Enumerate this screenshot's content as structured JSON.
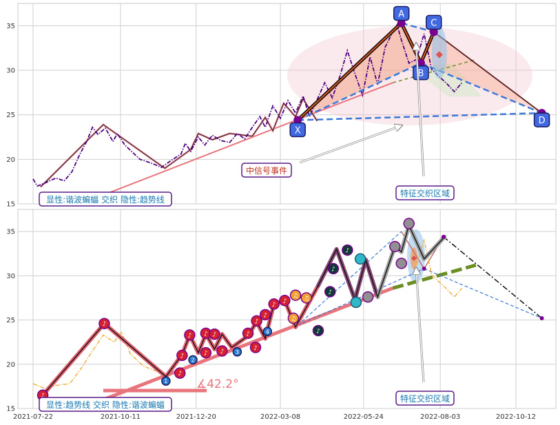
{
  "chart_data": [
    {
      "type": "line",
      "panel": "top",
      "ylim": [
        15,
        37.5
      ],
      "yticks": [
        15,
        20,
        25,
        30,
        35
      ],
      "price": [
        [
          "2021-07-22",
          17.8
        ],
        [
          "2021-07-26",
          17.0
        ],
        [
          "2021-08-03",
          17.4
        ],
        [
          "2021-08-12",
          17.9
        ],
        [
          "2021-08-20",
          17.6
        ],
        [
          "2021-08-27",
          18.6
        ],
        [
          "2021-09-03",
          20.5
        ],
        [
          "2021-09-10",
          22.1
        ],
        [
          "2021-09-15",
          23.6
        ],
        [
          "2021-09-20",
          22.8
        ],
        [
          "2021-09-27",
          23.5
        ],
        [
          "2021-10-04",
          22.0
        ],
        [
          "2021-10-08",
          22.9
        ],
        [
          "2021-10-15",
          21.6
        ],
        [
          "2021-10-22",
          20.8
        ],
        [
          "2021-10-29",
          20.0
        ],
        [
          "2021-11-08",
          19.6
        ],
        [
          "2021-11-18",
          19.1
        ],
        [
          "2021-11-26",
          19.8
        ],
        [
          "2021-12-06",
          20.6
        ],
        [
          "2021-12-10",
          21.8
        ],
        [
          "2021-12-15",
          20.9
        ],
        [
          "2021-12-22",
          22.5
        ],
        [
          "2021-12-28",
          21.6
        ],
        [
          "2022-01-04",
          22.7
        ],
        [
          "2022-01-12",
          22.1
        ],
        [
          "2022-01-20",
          21.9
        ],
        [
          "2022-01-27",
          22.9
        ],
        [
          "2022-02-03",
          22.3
        ],
        [
          "2022-02-10",
          23.6
        ],
        [
          "2022-02-17",
          24.8
        ],
        [
          "2022-02-22",
          23.6
        ],
        [
          "2022-03-01",
          26.0
        ],
        [
          "2022-03-08",
          24.6
        ],
        [
          "2022-03-15",
          26.6
        ],
        [
          "2022-03-22",
          25.2
        ],
        [
          "2022-03-29",
          27.1
        ],
        [
          "2022-04-04",
          24.8
        ],
        [
          "2022-04-11",
          26.7
        ],
        [
          "2022-04-18",
          28.6
        ],
        [
          "2022-04-25",
          26.9
        ],
        [
          "2022-05-02",
          29.3
        ],
        [
          "2022-05-09",
          32.2
        ],
        [
          "2022-05-16",
          29.6
        ],
        [
          "2022-05-23",
          27.2
        ],
        [
          "2022-05-30",
          31.5
        ],
        [
          "2022-06-06",
          28.4
        ],
        [
          "2022-06-13",
          32.6
        ],
        [
          "2022-06-20",
          34.3
        ],
        [
          "2022-06-24",
          35.1
        ],
        [
          "2022-06-28",
          33.4
        ],
        [
          "2022-07-05",
          30.8
        ],
        [
          "2022-07-12",
          31.2
        ],
        [
          "2022-07-19",
          34.1
        ],
        [
          "2022-07-26",
          30.1
        ],
        [
          "2022-08-02",
          29.3
        ],
        [
          "2022-08-09",
          28.5
        ],
        [
          "2022-08-16",
          27.6
        ],
        [
          "2022-08-23",
          28.6
        ]
      ],
      "zigzag": [
        [
          "2021-07-29",
          16.9
        ],
        [
          "2021-09-25",
          23.9
        ],
        [
          "2021-11-21",
          19.0
        ],
        [
          "2021-12-15",
          21.1
        ],
        [
          "2021-12-22",
          22.9
        ],
        [
          "2022-01-04",
          22.2
        ],
        [
          "2022-01-20",
          22.9
        ],
        [
          "2022-02-10",
          22.6
        ],
        [
          "2022-02-22",
          24.7
        ],
        [
          "2022-03-01",
          23.2
        ],
        [
          "2022-03-11",
          26.3
        ],
        [
          "2022-03-22",
          24.8
        ],
        [
          "2022-03-29",
          26.8
        ],
        [
          "2022-04-11",
          24.3
        ]
      ],
      "harmonic_points": [
        {
          "label": "X",
          "date": "2022-03-24",
          "value": 24.4
        },
        {
          "label": "A",
          "date": "2022-06-28",
          "value": 35.3
        },
        {
          "label": "B",
          "date": "2022-07-16",
          "value": 30.8
        },
        {
          "label": "C",
          "date": "2022-07-28",
          "value": 34.3
        },
        {
          "label": "D",
          "date": "2022-11-05",
          "value": 25.2
        }
      ],
      "trendline": [
        [
          "2021-09-25",
          16.0
        ],
        [
          "2022-06-20",
          28.6
        ]
      ],
      "trendline_ext": [
        [
          "2022-06-20",
          28.6
        ],
        [
          "2022-09-05",
          31.2
        ]
      ],
      "callouts": [
        "中信号事件",
        "特征交织区域"
      ],
      "legend_text": "显性:谐波蝙蝠 交织 隐性:趋势线"
    },
    {
      "type": "line",
      "panel": "bottom",
      "ylim": [
        15,
        37.5
      ],
      "yticks": [
        15,
        20,
        25,
        30,
        35
      ],
      "xticks": [
        "2021-07-22",
        "2021-10-11",
        "2021-12-20",
        "2022-03-08",
        "2022-05-24",
        "2022-08-03",
        "2022-10-12"
      ],
      "zigzag": [
        [
          "2021-07-31",
          16.5
        ],
        [
          "2021-09-26",
          24.6
        ],
        [
          "2021-11-22",
          18.6
        ],
        [
          "2021-12-07",
          21.1
        ],
        [
          "2021-12-14",
          23.3
        ],
        [
          "2021-12-22",
          21.3
        ],
        [
          "2021-12-29",
          23.4
        ],
        [
          "2022-01-06",
          21.7
        ],
        [
          "2022-01-13",
          23.4
        ],
        [
          "2022-01-22",
          21.9
        ],
        [
          "2022-02-06",
          23.2
        ],
        [
          "2022-02-14",
          24.8
        ],
        [
          "2022-02-22",
          22.9
        ],
        [
          "2022-03-02",
          26.8
        ],
        [
          "2022-03-12",
          27.2
        ],
        [
          "2022-03-22",
          24.2
        ],
        [
          "2022-04-12",
          28.9
        ],
        [
          "2022-04-29",
          33.0
        ],
        [
          "2022-05-16",
          27.3
        ],
        [
          "2022-05-26",
          31.8
        ],
        [
          "2022-06-06",
          27.6
        ],
        [
          "2022-06-22",
          33.3
        ],
        [
          "2022-06-28",
          32.7
        ],
        [
          "2022-07-05",
          35.7
        ],
        [
          "2022-07-19",
          31.9
        ],
        [
          "2022-08-07",
          34.4
        ]
      ],
      "markers": [
        {
          "date": "2021-07-31",
          "value": 16.5,
          "kind": "red"
        },
        {
          "date": "2021-09-26",
          "value": 24.6,
          "kind": "red"
        },
        {
          "date": "2021-11-22",
          "value": 18.1,
          "kind": "blue",
          "num": "1"
        },
        {
          "date": "2021-12-05",
          "value": 19.0,
          "kind": "red"
        },
        {
          "date": "2021-12-07",
          "value": 21.0,
          "kind": "red"
        },
        {
          "date": "2021-12-14",
          "value": 23.3,
          "kind": "red"
        },
        {
          "date": "2021-12-17",
          "value": 20.5,
          "kind": "blue",
          "num": "2"
        },
        {
          "date": "2021-12-29",
          "value": 23.5,
          "kind": "red"
        },
        {
          "date": "2021-12-29",
          "value": 21.3,
          "kind": "red"
        },
        {
          "date": "2022-01-06",
          "value": 23.4,
          "kind": "red"
        },
        {
          "date": "2022-01-13",
          "value": 21.5,
          "kind": "red"
        },
        {
          "date": "2022-01-27",
          "value": 21.4,
          "kind": "blue",
          "num": "3"
        },
        {
          "date": "2022-02-06",
          "value": 23.5,
          "kind": "red"
        },
        {
          "date": "2022-02-13",
          "value": 21.9,
          "kind": "red"
        },
        {
          "date": "2022-02-14",
          "value": 24.9,
          "kind": "red"
        },
        {
          "date": "2022-02-22",
          "value": 25.6,
          "kind": "red"
        },
        {
          "date": "2022-02-24",
          "value": 23.7,
          "kind": "blue",
          "num": "4"
        },
        {
          "date": "2022-03-02",
          "value": 26.8,
          "kind": "red"
        },
        {
          "date": "2022-03-12",
          "value": 27.2,
          "kind": "red"
        },
        {
          "date": "2022-03-22",
          "value": 27.8,
          "kind": "orange"
        },
        {
          "date": "2022-03-20",
          "value": 25.2,
          "kind": "orange"
        },
        {
          "date": "2022-04-01",
          "value": 27.5,
          "kind": "orange"
        },
        {
          "date": "2022-04-12",
          "value": 23.8,
          "kind": "dark"
        },
        {
          "date": "2022-04-23",
          "value": 28.2,
          "kind": "dark"
        },
        {
          "date": "2022-04-26",
          "value": 30.8,
          "kind": "dark"
        },
        {
          "date": "2022-05-09",
          "value": 32.9,
          "kind": "dark"
        },
        {
          "date": "2022-05-17",
          "value": 27.0,
          "kind": "teal"
        },
        {
          "date": "2022-05-21",
          "value": 31.9,
          "kind": "teal"
        },
        {
          "date": "2022-05-28",
          "value": 27.6,
          "kind": "gray"
        },
        {
          "date": "2022-06-22",
          "value": 33.3,
          "kind": "gray"
        },
        {
          "date": "2022-06-28",
          "value": 31.4,
          "kind": "gray"
        },
        {
          "date": "2022-07-05",
          "value": 35.9,
          "kind": "gray"
        }
      ],
      "price": [
        [
          "2021-07-22",
          17.8
        ],
        [
          "2021-08-03",
          17.2
        ],
        [
          "2021-08-12",
          17.6
        ],
        [
          "2021-08-25",
          17.8
        ],
        [
          "2021-09-05",
          19.6
        ],
        [
          "2021-09-15",
          21.5
        ],
        [
          "2021-09-25",
          23.3
        ],
        [
          "2021-10-05",
          22.5
        ],
        [
          "2021-10-12",
          23.6
        ],
        [
          "2021-10-20",
          21.2
        ],
        [
          "2021-11-01",
          19.8
        ],
        [
          "2021-11-22",
          18.8
        ],
        [
          "2022-07-12",
          31.2
        ],
        [
          "2022-07-19",
          34.1
        ],
        [
          "2022-07-26",
          30.1
        ],
        [
          "2022-08-02",
          29.3
        ],
        [
          "2022-08-09",
          28.5
        ],
        [
          "2022-08-16",
          27.6
        ],
        [
          "2022-08-23",
          28.6
        ]
      ],
      "bat_outline": [
        [
          "2022-06-28",
          35.0
        ],
        [
          "2022-07-19",
          30.8
        ],
        [
          "2022-08-06",
          34.4
        ],
        [
          "2022-11-05",
          25.2
        ]
      ],
      "trendline": [
        [
          "2021-09-25",
          16.0
        ],
        [
          "2022-06-20",
          28.6
        ]
      ],
      "trendline_ext": [
        [
          "2022-06-20",
          28.6
        ],
        [
          "2022-09-05",
          31.2
        ]
      ],
      "angle_text": "∡42.2°",
      "callouts": [
        "特征交织区域"
      ],
      "legend_text": "显性:趋势线 交织 隐性:谐波蝙蝠"
    }
  ],
  "colors": {
    "grid": "#cfcfcf",
    "price_dash": "#4b0082",
    "trend": "#e8747c",
    "trend_ext": "#6b8e23",
    "bat_dash": "#3c78d8",
    "label_fill": "#4169e1",
    "accent_purple": "#7a0090",
    "zig_red": "#e06070",
    "orange_line": "#f0b040"
  }
}
